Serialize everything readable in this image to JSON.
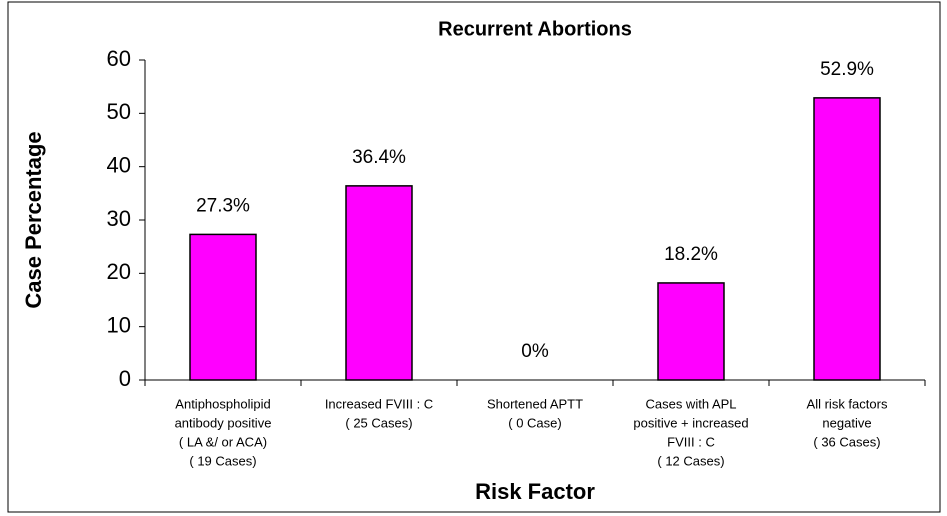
{
  "chart_data": {
    "type": "bar",
    "title": "Recurrent Abortions",
    "xlabel": "Risk Factor",
    "ylabel": "Case Percentage",
    "categories": [
      [
        "Antiphospholipid",
        "antibody positive",
        "( LA &/ or ACA)",
        "( 19 Cases)"
      ],
      [
        "Increased FVIII : C",
        "( 25 Cases)"
      ],
      [
        "Shortened APTT",
        "( 0 Case)"
      ],
      [
        "Cases with APL",
        "positive + increased",
        "FVIII : C",
        "( 12 Cases)"
      ],
      [
        "All risk factors",
        "negative",
        "( 36 Cases)"
      ]
    ],
    "values": [
      27.3,
      36.4,
      0,
      18.2,
      52.9
    ],
    "value_labels": [
      "27.3%",
      "36.4%",
      "0%",
      "18.2%",
      "52.9%"
    ],
    "color": "#ff00ff",
    "ylim": [
      0,
      60
    ],
    "yticks": [
      0,
      10,
      20,
      30,
      40,
      50,
      60
    ],
    "grid": false
  }
}
